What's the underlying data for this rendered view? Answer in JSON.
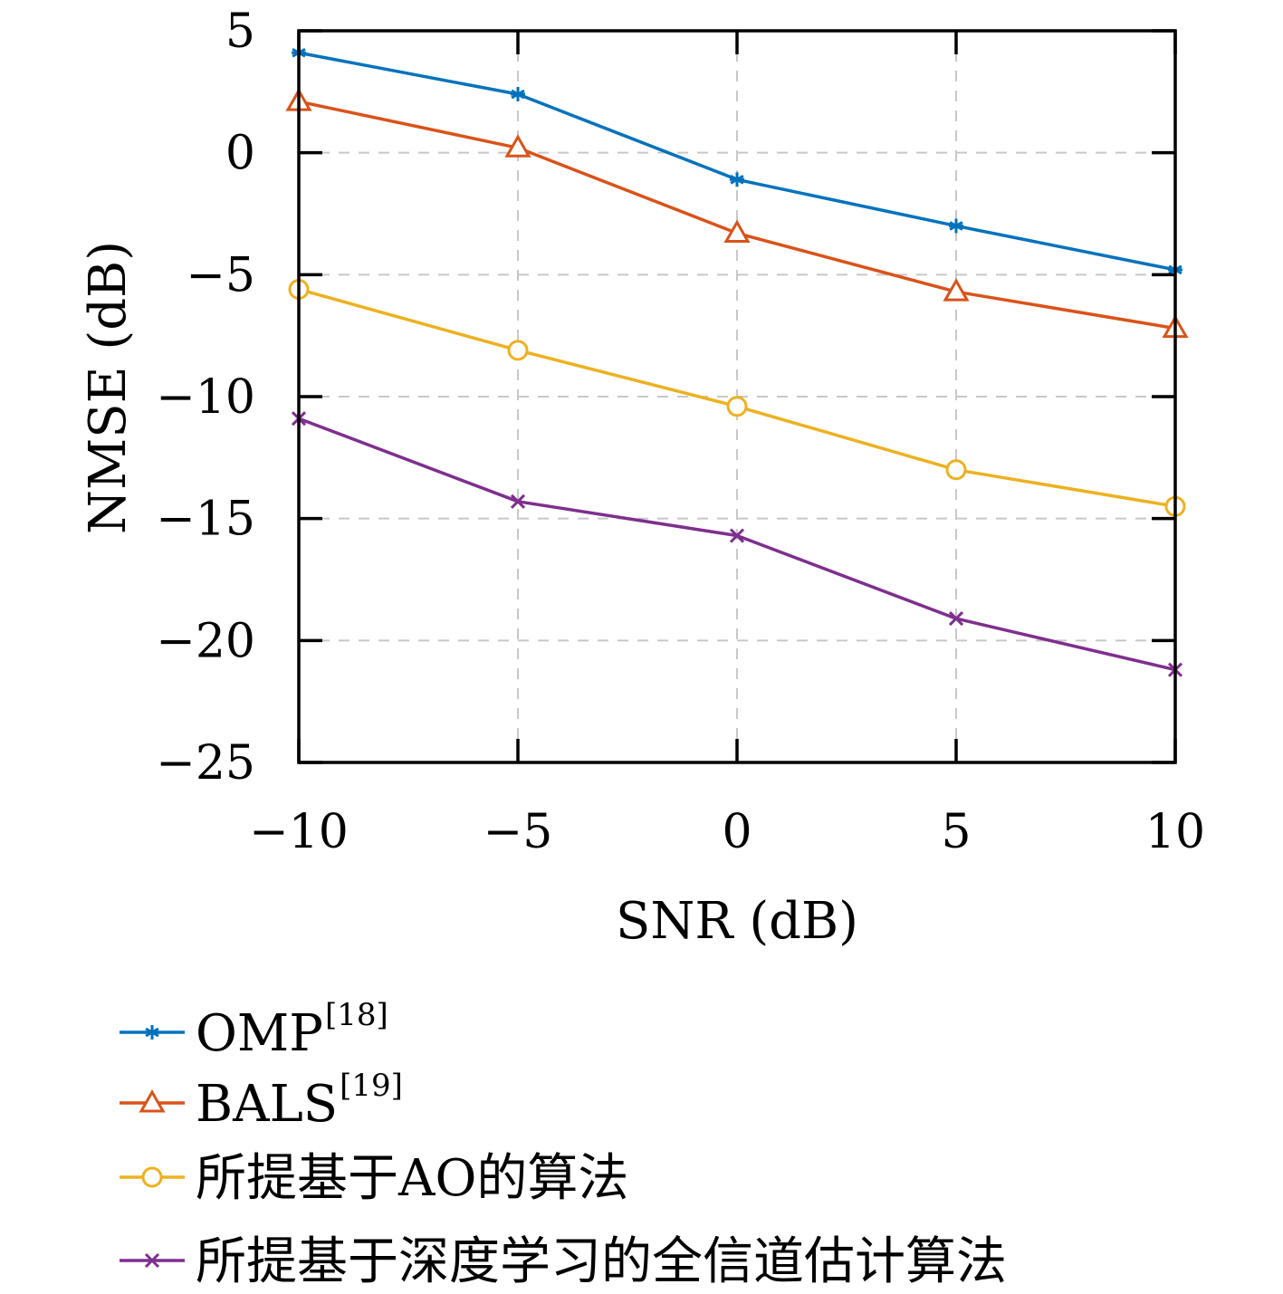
{
  "chart_data": {
    "type": "line",
    "xlabel": "SNR (dB)",
    "ylabel": "NMSE (dB)",
    "xlim": [
      -10,
      10
    ],
    "ylim": [
      -25,
      5
    ],
    "x": [
      -10,
      -5,
      0,
      5,
      10
    ],
    "x_ticks": [
      -10,
      -5,
      0,
      5,
      10
    ],
    "y_ticks": [
      5,
      0,
      -5,
      -10,
      -15,
      -20,
      -25
    ],
    "x_tick_labels": [
      "−10",
      "−5",
      "0",
      "5",
      "10"
    ],
    "y_tick_labels": [
      "5",
      "0",
      "−5",
      "−10",
      "−15",
      "−20",
      "−25"
    ],
    "grid": true,
    "legend_position": "below plot",
    "series": [
      {
        "name": "OMP",
        "ref": "[18]",
        "color": "#0072BD",
        "marker": "asterisk",
        "values": [
          4.1,
          2.4,
          -1.1,
          -3.0,
          -4.8
        ]
      },
      {
        "name": "BALS",
        "ref": "[19]",
        "color": "#D95319",
        "marker": "triangle",
        "values": [
          2.1,
          0.2,
          -3.3,
          -5.7,
          -7.2
        ]
      },
      {
        "name": "所提基于AO的算法",
        "ref": "",
        "color": "#EDB120",
        "marker": "circle",
        "values": [
          -5.6,
          -8.1,
          -10.4,
          -13.0,
          -14.5
        ]
      },
      {
        "name": "所提基于深度学习的全信道估计算法",
        "ref": "",
        "color": "#7E2F8E",
        "marker": "x",
        "values": [
          -10.9,
          -14.3,
          -15.7,
          -19.1,
          -21.2
        ]
      }
    ]
  }
}
